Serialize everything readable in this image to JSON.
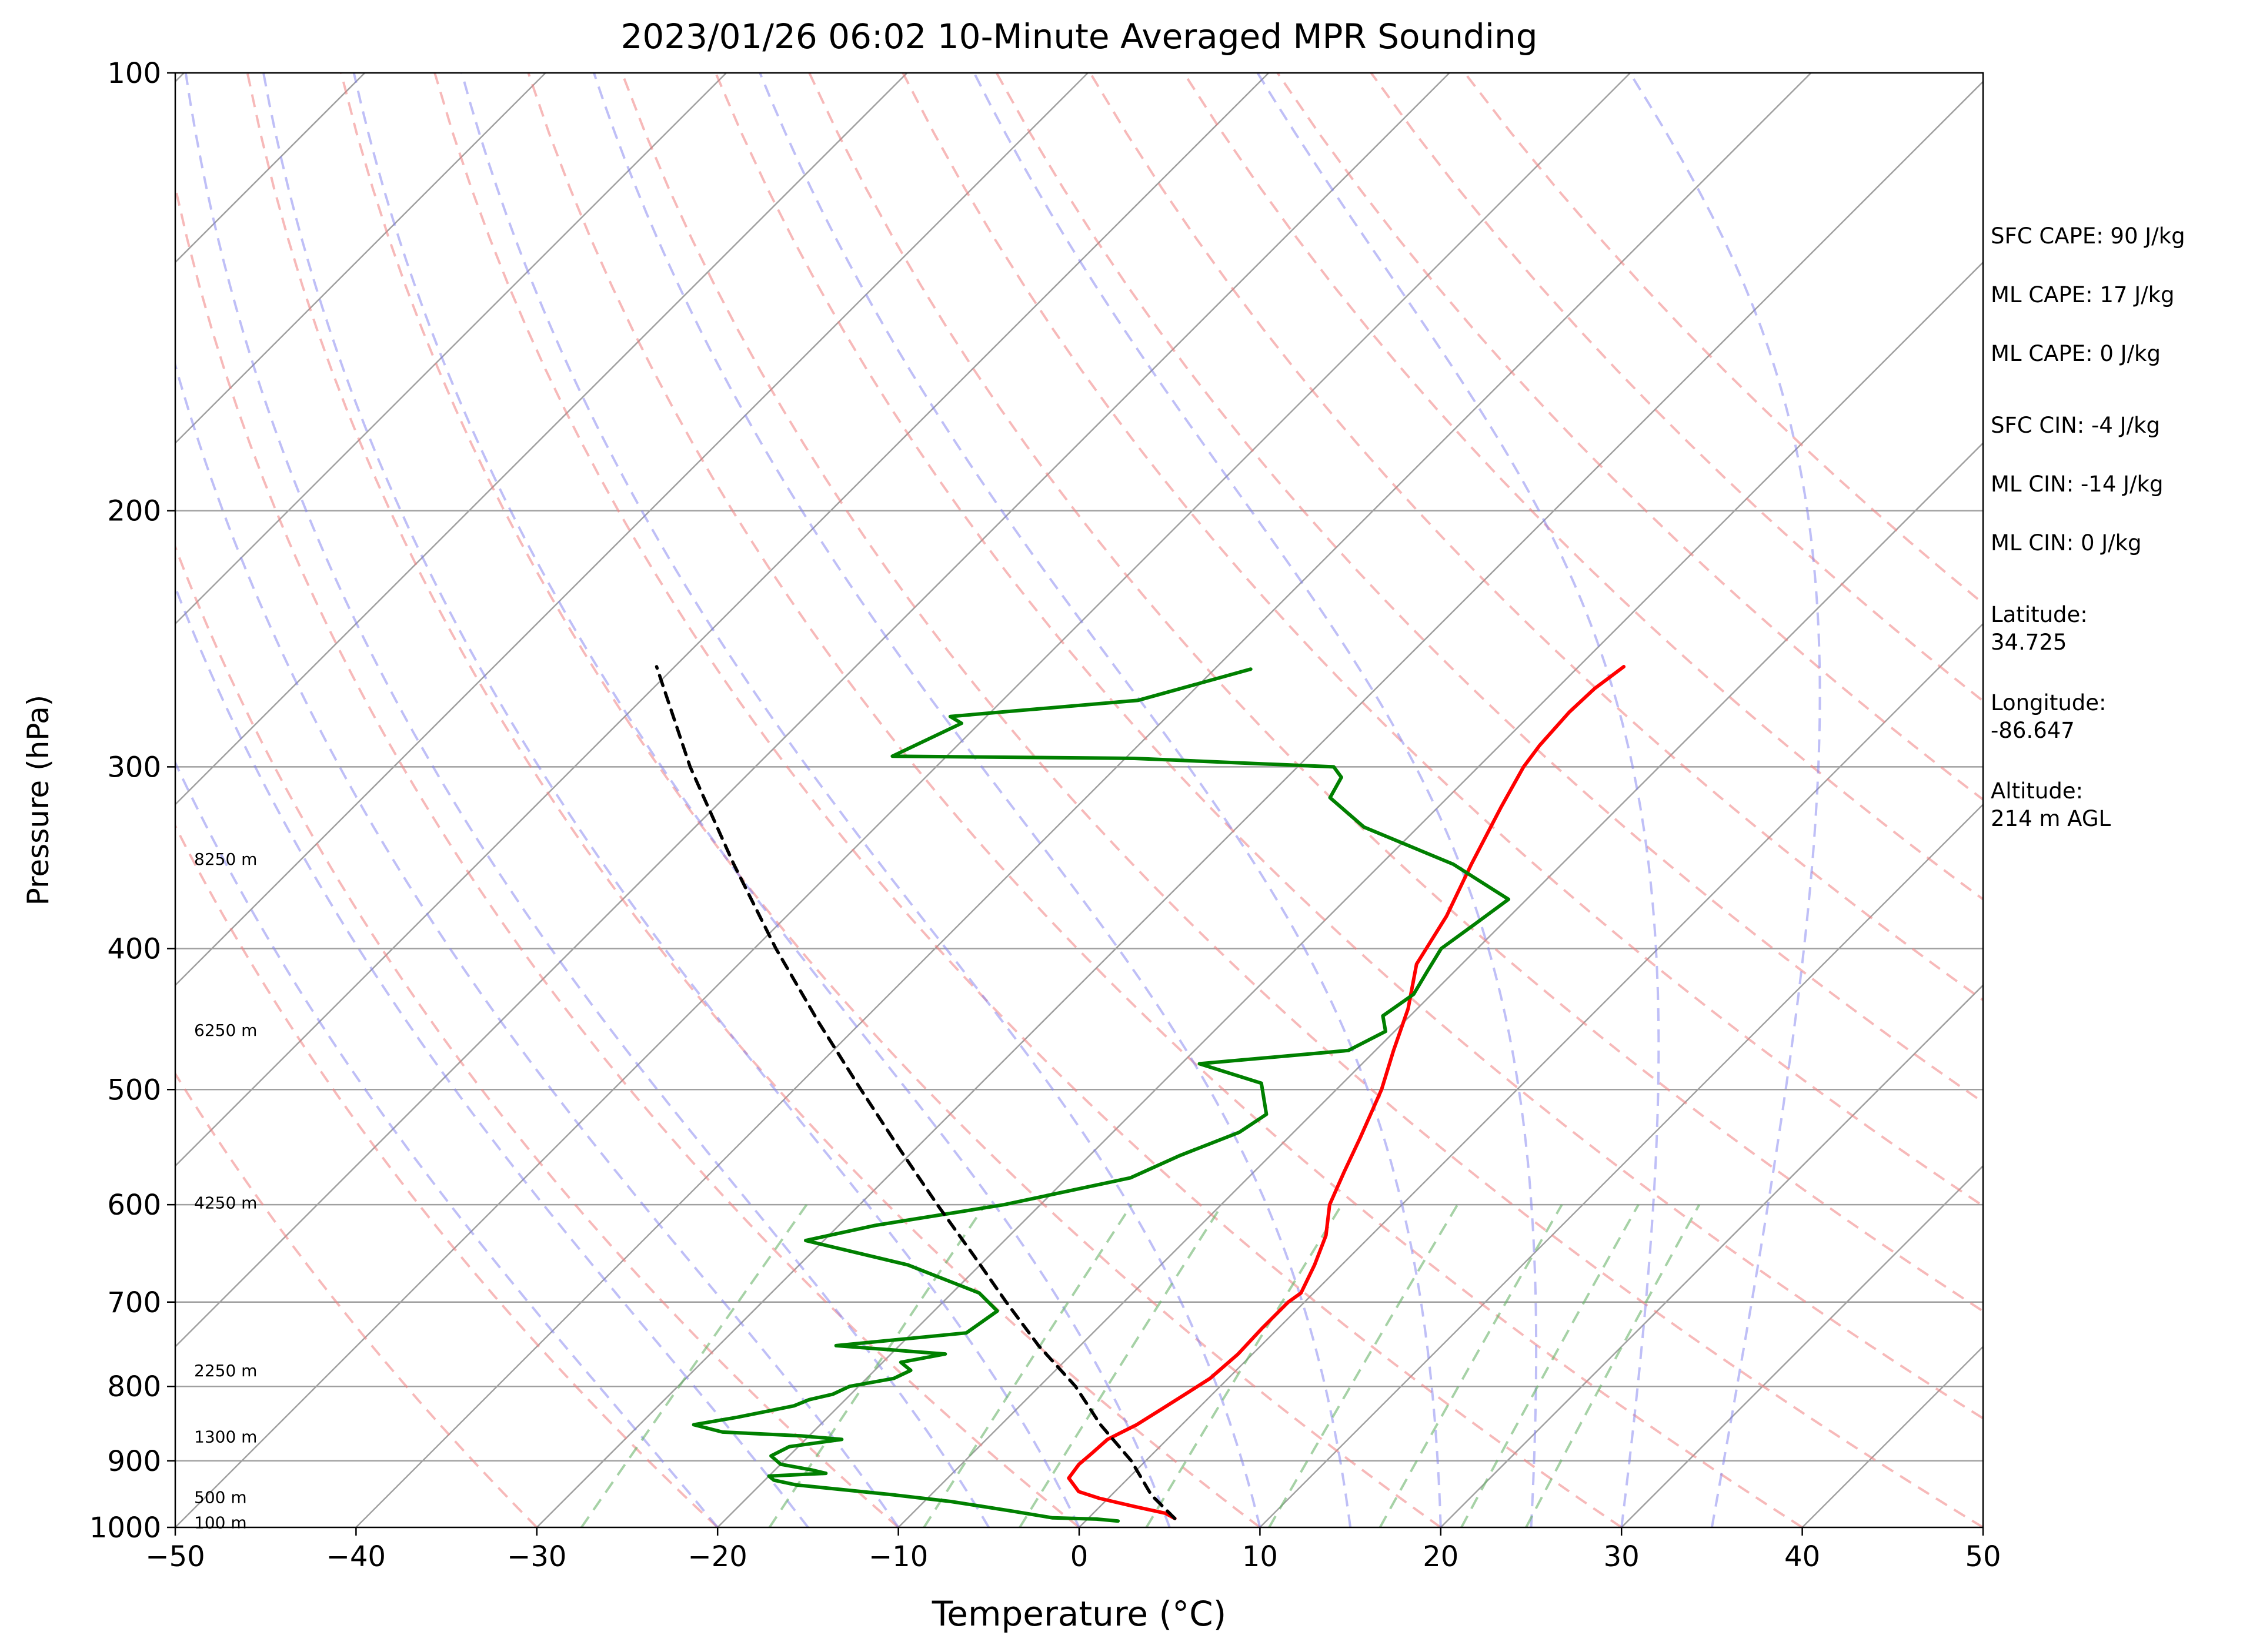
{
  "chart_data": {
    "type": "line",
    "title": "2023/01/26 06:02 10-Minute Averaged MPR Sounding",
    "xlabel": "Temperature (°C)",
    "ylabel": "Pressure (hPa)",
    "xlim": [
      -50,
      50
    ],
    "ylim": [
      1000,
      100
    ],
    "yscale": "log",
    "x_ticks": [
      -50,
      -40,
      -30,
      -20,
      -10,
      0,
      10,
      20,
      30,
      40,
      50
    ],
    "x_tick_labels": [
      "−50",
      "−40",
      "−30",
      "−20",
      "−10",
      "0",
      "10",
      "20",
      "30",
      "40",
      "50"
    ],
    "y_ticks": [
      100,
      200,
      300,
      400,
      500,
      600,
      700,
      800,
      900,
      1000
    ],
    "y_tick_labels": [
      "100",
      "200",
      "300",
      "400",
      "500",
      "600",
      "700",
      "800",
      "900",
      "1000"
    ],
    "grid": true,
    "skew": "temperature isotherms skewed 45°",
    "height_labels": [
      {
        "text": "8250 m",
        "p": 347
      },
      {
        "text": "6250 m",
        "p": 455
      },
      {
        "text": "4250 m",
        "p": 598
      },
      {
        "text": "2250 m",
        "p": 780
      },
      {
        "text": "1300 m",
        "p": 866
      },
      {
        "text": "500 m",
        "p": 953
      },
      {
        "text": "100 m",
        "p": 992
      }
    ],
    "background_lines": {
      "dry_adiabats_theta_K": [
        -30,
        -20,
        -10,
        0,
        10,
        20,
        30,
        40,
        50,
        60,
        70,
        80,
        90,
        100,
        110,
        120,
        130,
        140
      ],
      "moist_adiabats_start_temp_C": [
        -20,
        -15,
        -10,
        -5,
        0,
        5,
        10,
        15,
        20,
        25,
        30,
        35
      ],
      "mixing_ratio_lines_g_per_kg": [
        0.4,
        1,
        2,
        3,
        5,
        8,
        12,
        16,
        20
      ],
      "dry_adiabat_color": "#f08080",
      "moist_adiabat_color": "#8080f0",
      "mixing_ratio_color": "#6ab46a",
      "isotherm_color": "#a0a0a0"
    },
    "series": [
      {
        "role": "temperature",
        "color": "#ff0000",
        "points": [
          [
            986,
            4.8
          ],
          [
            978,
            4.0
          ],
          [
            968,
            2.0
          ],
          [
            955,
            -0.5
          ],
          [
            945,
            -2.0
          ],
          [
            925,
            -3.3
          ],
          [
            905,
            -3.5
          ],
          [
            890,
            -3.4
          ],
          [
            870,
            -3.3
          ],
          [
            850,
            -2.5
          ],
          [
            830,
            -2.0
          ],
          [
            810,
            -1.5
          ],
          [
            790,
            -1.0
          ],
          [
            760,
            -0.8
          ],
          [
            730,
            -0.9
          ],
          [
            700,
            -0.9
          ],
          [
            690,
            -0.7
          ],
          [
            660,
            -1.5
          ],
          [
            630,
            -2.5
          ],
          [
            600,
            -4.0
          ],
          [
            570,
            -5.0
          ],
          [
            540,
            -6.0
          ],
          [
            500,
            -7.5
          ],
          [
            470,
            -9.0
          ],
          [
            440,
            -10.5
          ],
          [
            410,
            -12.5
          ],
          [
            380,
            -13.5
          ],
          [
            350,
            -15.0
          ],
          [
            320,
            -16.5
          ],
          [
            300,
            -17.5
          ],
          [
            290,
            -17.8
          ],
          [
            275,
            -18.0
          ],
          [
            265,
            -17.9
          ],
          [
            256,
            -17.5
          ]
        ]
      },
      {
        "role": "dewpoint",
        "color": "#008000",
        "points": [
          [
            990,
            1.8
          ],
          [
            987,
            0.5
          ],
          [
            985,
            -2.0
          ],
          [
            975,
            -4.5
          ],
          [
            960,
            -8.5
          ],
          [
            950,
            -12.0
          ],
          [
            940,
            -16.0
          ],
          [
            935,
            -18.0
          ],
          [
            928,
            -19.5
          ],
          [
            922,
            -20.0
          ],
          [
            918,
            -17.0
          ],
          [
            913,
            -18.0
          ],
          [
            905,
            -20.0
          ],
          [
            893,
            -21.0
          ],
          [
            880,
            -20.5
          ],
          [
            870,
            -18.0
          ],
          [
            865,
            -20.5
          ],
          [
            860,
            -25.0
          ],
          [
            850,
            -27.0
          ],
          [
            840,
            -25.0
          ],
          [
            825,
            -22.5
          ],
          [
            817,
            -22.0
          ],
          [
            810,
            -21.0
          ],
          [
            800,
            -20.5
          ],
          [
            790,
            -18.5
          ],
          [
            780,
            -18.0
          ],
          [
            770,
            -19.0
          ],
          [
            760,
            -17.0
          ],
          [
            750,
            -23.5
          ],
          [
            735,
            -17.0
          ],
          [
            710,
            -16.5
          ],
          [
            690,
            -18.5
          ],
          [
            660,
            -24.0
          ],
          [
            635,
            -31.0
          ],
          [
            620,
            -28.0
          ],
          [
            600,
            -22.0
          ],
          [
            575,
            -16.5
          ],
          [
            555,
            -15.0
          ],
          [
            535,
            -13.0
          ],
          [
            520,
            -12.5
          ],
          [
            495,
            -14.5
          ],
          [
            480,
            -19.0
          ],
          [
            470,
            -11.5
          ],
          [
            456,
            -10.5
          ],
          [
            445,
            -11.5
          ],
          [
            430,
            -11.0
          ],
          [
            415,
            -11.5
          ],
          [
            400,
            -12.0
          ],
          [
            385,
            -11.5
          ],
          [
            370,
            -11.0
          ],
          [
            350,
            -16.0
          ],
          [
            330,
            -23.0
          ],
          [
            315,
            -26.5
          ],
          [
            305,
            -27.0
          ],
          [
            300,
            -28.0
          ],
          [
            296,
            -39.5
          ],
          [
            295,
            -53.0
          ],
          [
            280,
            -51.0
          ],
          [
            277,
            -52.0
          ],
          [
            270,
            -42.5
          ],
          [
            257,
            -38.0
          ]
        ]
      },
      {
        "role": "parcel",
        "color": "#000000",
        "style": "dashed",
        "points": [
          [
            986,
            4.8
          ],
          [
            950,
            2.2
          ],
          [
            900,
            -0.8
          ],
          [
            850,
            -4.5
          ],
          [
            800,
            -8.0
          ],
          [
            750,
            -12.3
          ],
          [
            700,
            -16.5
          ],
          [
            650,
            -20.9
          ],
          [
            600,
            -25.7
          ],
          [
            550,
            -30.8
          ],
          [
            500,
            -36.3
          ],
          [
            450,
            -42.3
          ],
          [
            400,
            -48.8
          ],
          [
            350,
            -55.8
          ],
          [
            300,
            -63.6
          ],
          [
            256,
            -71.0
          ]
        ]
      }
    ]
  },
  "annotations": [
    "SFC CAPE: 90 J/kg",
    "ML CAPE: 17 J/kg",
    "ML CAPE: 0 J/kg",
    "SFC CIN: -4 J/kg",
    "ML CIN: -14 J/kg",
    "ML CIN: 0 J/kg",
    "Latitude:\n34.725",
    "Longitude:\n-86.647",
    "Altitude:\n214 m AGL"
  ]
}
